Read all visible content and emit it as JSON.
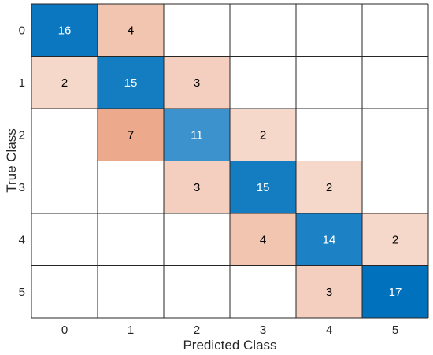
{
  "chart_data": {
    "type": "heatmap",
    "chart_kind": "confusion-matrix",
    "xlabel": "Predicted Class",
    "ylabel": "True Class",
    "x_categories": [
      "0",
      "1",
      "2",
      "3",
      "4",
      "5"
    ],
    "y_categories": [
      "0",
      "1",
      "2",
      "3",
      "4",
      "5"
    ],
    "matrix": [
      [
        16,
        4,
        0,
        0,
        0,
        0
      ],
      [
        2,
        15,
        3,
        0,
        0,
        0
      ],
      [
        0,
        7,
        11,
        2,
        0,
        0
      ],
      [
        0,
        0,
        3,
        15,
        2,
        0
      ],
      [
        0,
        0,
        0,
        4,
        14,
        2
      ],
      [
        0,
        0,
        0,
        0,
        3,
        17
      ]
    ],
    "colors": {
      "diagonal_max": "#0072BD",
      "diagonal_min": "#FFFFFF",
      "offdiag_max": "#D95319",
      "offdiag_min": "#FFFFFF",
      "grid": "#262626",
      "dark_text": "#000000",
      "light_text": "#FFFFFF"
    }
  }
}
